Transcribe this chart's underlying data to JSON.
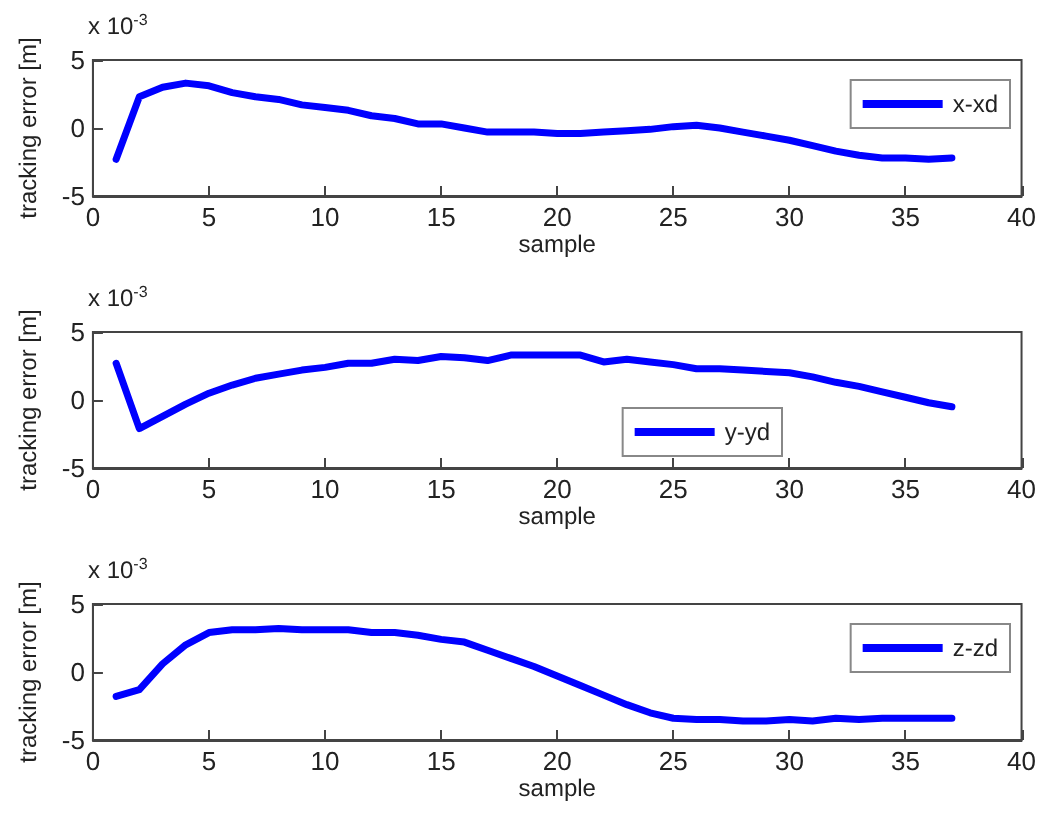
{
  "chart_data": [
    {
      "type": "line",
      "xlabel": "sample",
      "ylabel": "tracking error [m]",
      "annotations": [
        "x 10$^{-3}$"
      ],
      "x": [
        1,
        2,
        3,
        4,
        5,
        6,
        7,
        8,
        9,
        10,
        11,
        12,
        13,
        14,
        15,
        16,
        17,
        18,
        19,
        20,
        21,
        22,
        23,
        24,
        25,
        26,
        27,
        28,
        29,
        30,
        31,
        32,
        33,
        34,
        35,
        36,
        37
      ],
      "xlim": [
        0,
        40
      ],
      "xticks": [
        0,
        5,
        10,
        15,
        20,
        25,
        30,
        35,
        40
      ],
      "ylim": [
        -5,
        5
      ],
      "yticks": [
        -5,
        0,
        5
      ],
      "legend": "top right",
      "marker": "none",
      "line_style": "solid",
      "grid": false,
      "series": [
        {
          "name": "x-xd",
          "color": "#0000ff",
          "values": [
            -2.3,
            2.3,
            3.0,
            3.3,
            3.1,
            2.6,
            2.3,
            2.1,
            1.7,
            1.5,
            1.3,
            0.9,
            0.7,
            0.3,
            0.3,
            0,
            -0.3,
            -0.3,
            -0.3,
            -0.4,
            -0.4,
            -0.3,
            -0.2,
            -0.1,
            0.1,
            0.2,
            0,
            -0.3,
            -0.6,
            -0.9,
            -1.3,
            -1.7,
            -2.0,
            -2.2,
            -2.2,
            -2.3,
            -2.2
          ]
        }
      ]
    },
    {
      "type": "line",
      "xlabel": "sample",
      "ylabel": "tracking error [m]",
      "annotations": [
        "x 10$^{-3}$"
      ],
      "x": [
        1,
        2,
        3,
        4,
        5,
        6,
        7,
        8,
        9,
        10,
        11,
        12,
        13,
        14,
        15,
        16,
        17,
        18,
        19,
        20,
        21,
        22,
        23,
        24,
        25,
        26,
        27,
        28,
        29,
        30,
        31,
        32,
        33,
        34,
        35,
        36,
        37
      ],
      "xlim": [
        0,
        40
      ],
      "xticks": [
        0,
        5,
        10,
        15,
        20,
        25,
        30,
        35,
        40
      ],
      "ylim": [
        -5,
        5
      ],
      "yticks": [
        -5,
        0,
        5
      ],
      "legend": "bottom right",
      "marker": "none",
      "line_style": "solid",
      "grid": false,
      "series": [
        {
          "name": "y-yd",
          "color": "#0000ff",
          "values": [
            2.7,
            -2.1,
            -1.2,
            -0.3,
            0.5,
            1.1,
            1.6,
            1.9,
            2.2,
            2.4,
            2.7,
            2.7,
            3.0,
            2.9,
            3.2,
            3.1,
            2.9,
            3.3,
            3.3,
            3.3,
            3.3,
            2.8,
            3.0,
            2.8,
            2.6,
            2.3,
            2.3,
            2.2,
            2.1,
            2.0,
            1.7,
            1.3,
            1.0,
            0.6,
            0.2,
            -0.2,
            -0.5
          ]
        }
      ]
    },
    {
      "type": "line",
      "xlabel": "sample",
      "ylabel": "tracking error [m]",
      "annotations": [
        "x 10$^{-3}$"
      ],
      "x": [
        1,
        2,
        3,
        4,
        5,
        6,
        7,
        8,
        9,
        10,
        11,
        12,
        13,
        14,
        15,
        16,
        17,
        18,
        19,
        20,
        21,
        22,
        23,
        24,
        25,
        26,
        27,
        28,
        29,
        30,
        31,
        32,
        33,
        34,
        35,
        36,
        37
      ],
      "xlim": [
        0,
        40
      ],
      "xticks": [
        0,
        5,
        10,
        15,
        20,
        25,
        30,
        35,
        40
      ],
      "ylim": [
        -5,
        5
      ],
      "yticks": [
        -5,
        0,
        5
      ],
      "legend": "top right",
      "marker": "none",
      "line_style": "solid",
      "grid": false,
      "series": [
        {
          "name": "z-zd",
          "color": "#0000ff",
          "values": [
            -1.8,
            -1.3,
            0.6,
            2.0,
            2.9,
            3.1,
            3.1,
            3.2,
            3.1,
            3.1,
            3.1,
            2.9,
            2.9,
            2.7,
            2.4,
            2.2,
            1.6,
            1.0,
            0.4,
            -0.3,
            -1.0,
            -1.7,
            -2.4,
            -3.0,
            -3.4,
            -3.5,
            -3.5,
            -3.6,
            -3.6,
            -3.5,
            -3.6,
            -3.4,
            -3.5,
            -3.4,
            -3.4,
            -3.4,
            -3.4
          ]
        }
      ]
    }
  ]
}
